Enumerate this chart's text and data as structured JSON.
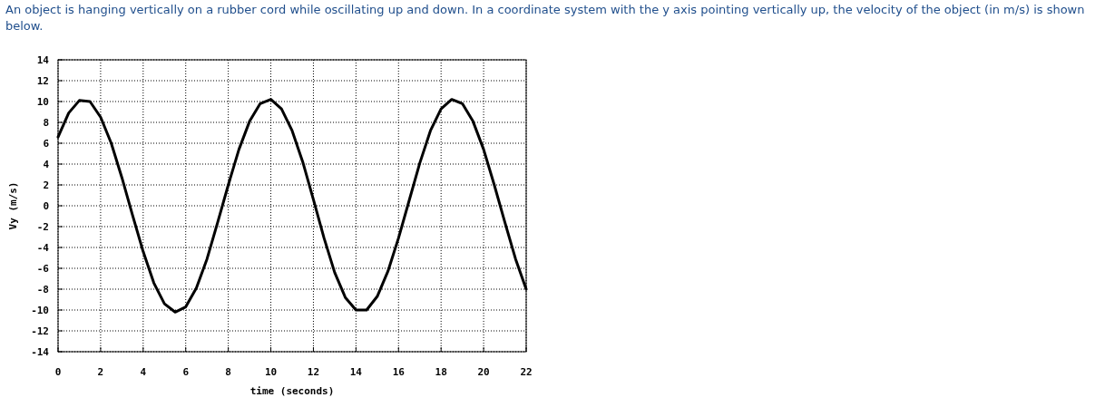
{
  "chart_data": {
    "type": "line",
    "title": "An object is hanging vertically on a rubber cord while oscillating up and down. In a coordinate system with the y axis pointing vertically up, the velocity of the object (in m/s) is shown below.",
    "xlabel": "time (seconds)",
    "ylabel": "Vy (m/s)",
    "x": [
      0,
      0.5,
      1,
      1.5,
      2,
      2.5,
      3,
      3.5,
      4,
      4.5,
      5,
      5.5,
      6,
      6.5,
      7,
      7.5,
      8,
      8.5,
      9,
      9.5,
      10,
      10.5,
      11,
      11.5,
      12,
      12.5,
      13,
      13.5,
      14,
      14.5,
      15,
      15.5,
      16,
      16.5,
      17,
      17.5,
      18,
      18.5,
      19,
      19.5,
      20,
      20.5,
      21,
      21.5,
      22
    ],
    "series": [
      {
        "color": "#000000",
        "values": [
          6.6,
          8.9,
          10.1,
          10.0,
          8.5,
          6.0,
          2.7,
          -0.9,
          -4.4,
          -7.4,
          -9.4,
          -10.2,
          -9.7,
          -7.9,
          -5.1,
          -1.6,
          2.0,
          5.4,
          8.1,
          9.8,
          10.2,
          9.3,
          7.2,
          4.2,
          0.6,
          -3.1,
          -6.4,
          -8.8,
          -10.0,
          -10.0,
          -8.7,
          -6.3,
          -3.1,
          0.5,
          4.1,
          7.2,
          9.3,
          10.2,
          9.8,
          8.1,
          5.4,
          2.0,
          -1.6,
          -5.1,
          -8.0
        ]
      }
    ],
    "xlim": [
      0,
      22
    ],
    "ylim": [
      -14,
      14
    ],
    "xticks": [
      0,
      2,
      4,
      6,
      8,
      10,
      12,
      14,
      16,
      18,
      20,
      22
    ],
    "yticks": [
      -14,
      -12,
      -10,
      -8,
      -6,
      -4,
      -2,
      0,
      2,
      4,
      6,
      8,
      10,
      12,
      14
    ],
    "grid": true
  }
}
